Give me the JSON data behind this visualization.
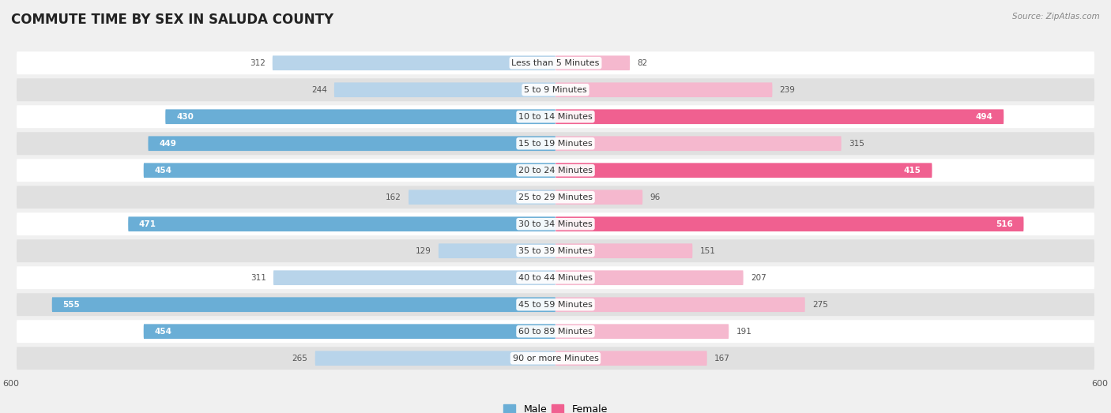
{
  "title": "COMMUTE TIME BY SEX IN SALUDA COUNTY",
  "source": "Source: ZipAtlas.com",
  "categories": [
    "Less than 5 Minutes",
    "5 to 9 Minutes",
    "10 to 14 Minutes",
    "15 to 19 Minutes",
    "20 to 24 Minutes",
    "25 to 29 Minutes",
    "30 to 34 Minutes",
    "35 to 39 Minutes",
    "40 to 44 Minutes",
    "45 to 59 Minutes",
    "60 to 89 Minutes",
    "90 or more Minutes"
  ],
  "male_values": [
    312,
    244,
    430,
    449,
    454,
    162,
    471,
    129,
    311,
    555,
    454,
    265
  ],
  "female_values": [
    82,
    239,
    494,
    315,
    415,
    96,
    516,
    151,
    207,
    275,
    191,
    167
  ],
  "male_color_strong": "#6aaed6",
  "male_color_light": "#b8d4ea",
  "female_color_strong": "#f06090",
  "female_color_light": "#f5b8ce",
  "axis_limit": 600,
  "background_color": "#f0f0f0",
  "row_bg_light": "#ffffff",
  "row_bg_dark": "#e0e0e0",
  "title_fontsize": 12,
  "label_fontsize": 8,
  "value_fontsize": 7.5,
  "legend_fontsize": 9,
  "strong_threshold": 350
}
